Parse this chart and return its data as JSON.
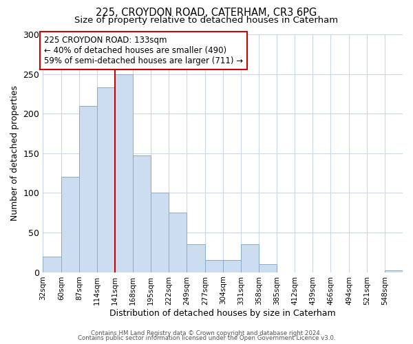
{
  "title": "225, CROYDON ROAD, CATERHAM, CR3 6PG",
  "subtitle": "Size of property relative to detached houses in Caterham",
  "xlabel": "Distribution of detached houses by size in Caterham",
  "ylabel": "Number of detached properties",
  "bin_edges": [
    32,
    60,
    87,
    114,
    141,
    168,
    195,
    222,
    249,
    277,
    304,
    331,
    358,
    385,
    412,
    439,
    466,
    494,
    521,
    548,
    575
  ],
  "bar_heights": [
    20,
    120,
    210,
    233,
    250,
    147,
    100,
    75,
    35,
    15,
    15,
    35,
    10,
    0,
    0,
    0,
    0,
    0,
    0,
    2
  ],
  "bar_facecolor": "#ccddef",
  "bar_edgecolor": "#88aacc",
  "vline_x": 141,
  "vline_color": "#cc0000",
  "ylim": [
    0,
    300
  ],
  "yticks": [
    0,
    50,
    100,
    150,
    200,
    250,
    300
  ],
  "annotation_text": "225 CROYDON ROAD: 133sqm\n← 40% of detached houses are smaller (490)\n59% of semi-detached houses are larger (711) →",
  "annotation_box_color": "#cc0000",
  "footer1": "Contains HM Land Registry data © Crown copyright and database right 2024.",
  "footer2": "Contains public sector information licensed under the Open Government Licence v3.0.",
  "background_color": "#ffffff",
  "grid_color": "#c8d8e8",
  "tick_label_fontsize": 7.5,
  "title_fontsize": 10.5,
  "subtitle_fontsize": 9.5
}
